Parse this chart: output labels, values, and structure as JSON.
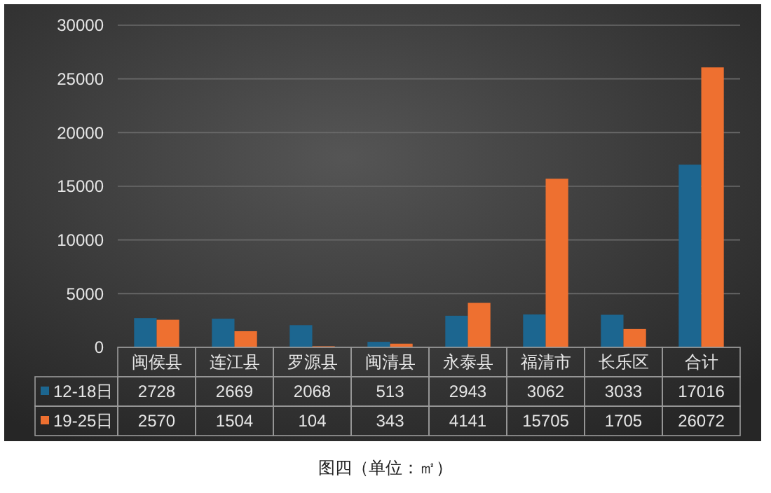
{
  "chart_data": {
    "type": "bar",
    "categories": [
      "闽侯县",
      "连江县",
      "罗源县",
      "闽清县",
      "永泰县",
      "福清市",
      "长乐区",
      "合计"
    ],
    "series": [
      {
        "name": "12-18日",
        "color": "#1c6690",
        "values": [
          2728,
          2669,
          2068,
          513,
          2943,
          3062,
          3033,
          17016
        ]
      },
      {
        "name": "19-25日",
        "color": "#ee7030",
        "values": [
          2570,
          1504,
          104,
          343,
          4141,
          15705,
          1705,
          26072
        ]
      }
    ],
    "ylim": [
      0,
      30000
    ],
    "yticks": [
      0,
      5000,
      10000,
      15000,
      20000,
      25000,
      30000
    ],
    "grid": "y",
    "legend": "bottom",
    "data_labels": true,
    "annotations": [
      "图四（单位：㎡）"
    ]
  }
}
